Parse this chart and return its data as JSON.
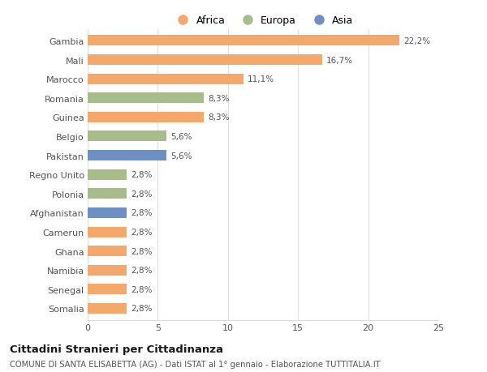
{
  "countries": [
    "Somalia",
    "Senegal",
    "Namibia",
    "Ghana",
    "Camerun",
    "Afghanistan",
    "Polonia",
    "Regno Unito",
    "Pakistan",
    "Belgio",
    "Guinea",
    "Romania",
    "Marocco",
    "Mali",
    "Gambia"
  ],
  "values": [
    2.8,
    2.8,
    2.8,
    2.8,
    2.8,
    2.8,
    2.8,
    2.8,
    5.6,
    5.6,
    8.3,
    8.3,
    11.1,
    16.7,
    22.2
  ],
  "labels": [
    "2,8%",
    "2,8%",
    "2,8%",
    "2,8%",
    "2,8%",
    "2,8%",
    "2,8%",
    "2,8%",
    "5,6%",
    "5,6%",
    "8,3%",
    "8,3%",
    "11,1%",
    "16,7%",
    "22,2%"
  ],
  "colors": [
    "#F4A86C",
    "#F4A86C",
    "#F4A86C",
    "#F4A86C",
    "#F4A86C",
    "#6E8FC4",
    "#A8BB8A",
    "#A8BB8A",
    "#6E8FC4",
    "#A8BB8A",
    "#F4A86C",
    "#A8BB8A",
    "#F4A86C",
    "#F4A86C",
    "#F4A86C"
  ],
  "continent_colors": {
    "Africa": "#F4A86C",
    "Europa": "#A8BB8A",
    "Asia": "#6E8FC4"
  },
  "title": "Cittadini Stranieri per Cittadinanza",
  "subtitle": "COMUNE DI SANTA ELISABETTA (AG) - Dati ISTAT al 1° gennaio - Elaborazione TUTTITALIA.IT",
  "xlim": [
    0,
    25
  ],
  "xticks": [
    0,
    5,
    10,
    15,
    20,
    25
  ],
  "background_color": "#ffffff",
  "grid_color": "#e0e0e0"
}
